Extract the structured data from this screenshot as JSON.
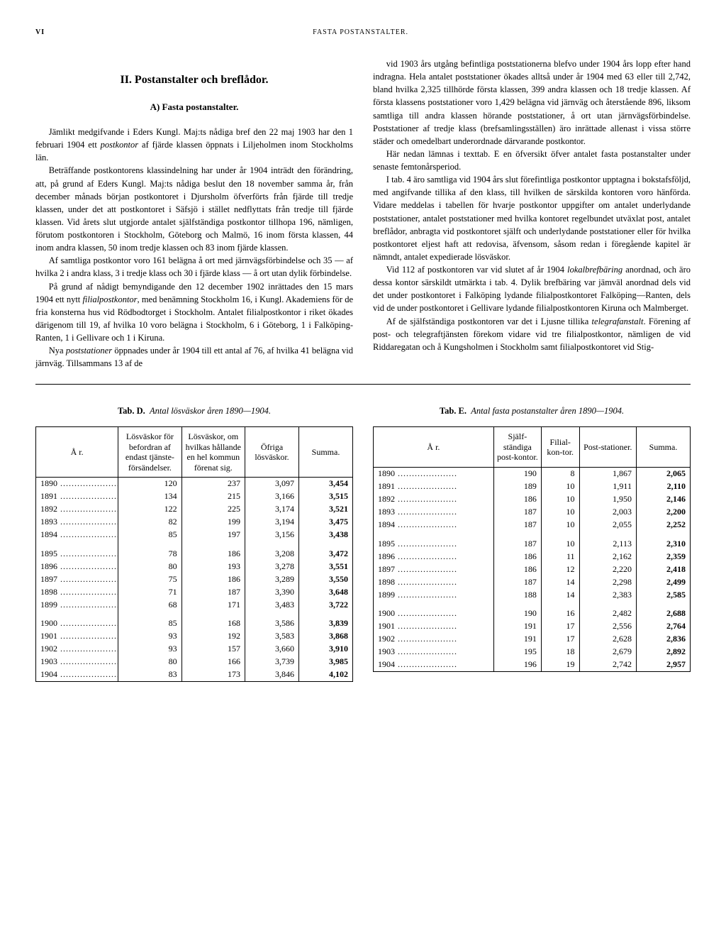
{
  "header": {
    "page_num": "VI",
    "running_title": "FASTA POSTANSTALTER."
  },
  "section": {
    "title": "II.   Postanstalter och breflådor.",
    "subtitle": "A) Fasta postanstalter."
  },
  "left_paras": [
    "Jämlikt medgifvande i Eders Kungl. Maj:ts nådiga bref den 22 maj 1903 har den 1 februari 1904 ett <i>postkontor</i> af fjärde klassen öppnats i Liljeholmen inom Stockholms län.",
    "Beträffande postkontorens klassindelning har under år 1904 inträdt den förändring, att, på grund af Eders Kungl. Maj:ts nådiga beslut den 18 november samma år, från december månads början postkontoret i Djursholm öfverförts från fjärde till tredje klassen, under det att postkontoret i Säfsjö i stället nedflyttats från tredje till fjärde klassen. Vid årets slut utgjorde antalet själfständiga postkontor tillhopa 196, nämligen, förutom postkontoren i Stockholm, Göteborg och Malmö, 16 inom första klassen, 44 inom andra klassen, 50 inom tredje klassen och 83 inom fjärde klassen.",
    "Af samtliga postkontor voro 161 belägna å ort med järnvägsförbindelse och 35 — af hvilka 2 i andra klass, 3 i tredje klass och 30 i fjärde klass — å ort utan dylik förbindelse.",
    "På grund af nådigt bemyndigande den 12 december 1902 inrättades den 15 mars 1904 ett nytt <i>filialpostkontor</i>, med benämning Stockholm 16, i Kungl. Akademiens för de fria konsterna hus vid Rödbodtorget i Stockholm. Antalet filialpostkontor i riket ökades därigenom till 19, af hvilka 10 voro belägna i Stockholm, 6 i Göteborg, 1 i Falköping-Ranten, 1 i Gellivare och 1 i Kiruna.",
    "Nya <i>poststationer</i> öppnades under år 1904 till ett antal af 76, af hvilka 41 belägna vid järnväg. Tillsammans 13 af de"
  ],
  "right_paras": [
    "vid 1903 års utgång befintliga poststationerna blefvo under 1904 års lopp efter hand indragna. Hela antalet poststationer ökades alltså under år 1904 med 63 eller till 2,742, bland hvilka 2,325 tillhörde första klassen, 399 andra klassen och 18 tredje klassen. Af första klassens poststationer voro 1,429 belägna vid järnväg och återstående 896, liksom samtliga till andra klassen hörande poststationer, å ort utan järnvägsförbindelse. Poststationer af tredje klass (brefsamlingsställen) äro inrättade allenast i vissa större städer och omedelbart underordnade därvarande postkontor.",
    "Här nedan lämnas i texttab. E en öfversikt öfver antalet fasta postanstalter under senaste femtonårsperiod.",
    "I tab. 4 äro samtliga vid 1904 års slut förefintliga postkontor upptagna i bokstafsföljd, med angifvande tillika af den klass, till hvilken de särskilda kontoren voro hänförda. Vidare meddelas i tabellen för hvarje postkontor uppgifter om antalet underlydande poststationer, antalet poststationer med hvilka kontoret regelbundet utväxlat post, antalet breflådor, anbragta vid postkontoret själft och underlydande poststationer eller för hvilka postkontoret eljest haft att redovisa, äfvensom, såsom redan i föregående kapitel är nämndt, antalet expedierade lösväskor.",
    "Vid 112 af postkontoren var vid slutet af år 1904 <i>lokalbrefbäring</i> anordnad, och äro dessa kontor särskildt utmärkta i tab. 4. Dylik brefbäring var jämväl anordnad dels vid det under postkontoret i Falköping lydande filialpostkontoret Falköping—Ranten, dels vid de under postkontoret i Gellivare lydande filialpostkontoren Kiruna och Malmberget.",
    "Af de själfständiga postkontoren var det i Ljusne tillika <i>telegrafanstalt</i>. Förening af post- och telegraftjänsten förekom vidare vid tre filialpostkontor, nämligen de vid Riddaregatan och å Kungsholmen i Stockholm samt filialpostkontoret vid Stig-"
  ],
  "tableD": {
    "title_bold": "Tab. D.",
    "title_ital": "Antal lösväskor åren 1890—1904.",
    "headers": [
      "Å r.",
      "Lösväskor för befordran af endast tjänste-försändelser.",
      "Lösväskor, om hvilkas hållande en hel kommun förenat sig.",
      "Öfriga lösväskor.",
      "Summa."
    ],
    "rows": [
      [
        "1890",
        "120",
        "237",
        "3,097",
        "3,454"
      ],
      [
        "1891",
        "134",
        "215",
        "3,166",
        "3,515"
      ],
      [
        "1892",
        "122",
        "225",
        "3,174",
        "3,521"
      ],
      [
        "1893",
        "82",
        "199",
        "3,194",
        "3,475"
      ],
      [
        "1894",
        "85",
        "197",
        "3,156",
        "3,438"
      ],
      [
        "1895",
        "78",
        "186",
        "3,208",
        "3,472"
      ],
      [
        "1896",
        "80",
        "193",
        "3,278",
        "3,551"
      ],
      [
        "1897",
        "75",
        "186",
        "3,289",
        "3,550"
      ],
      [
        "1898",
        "71",
        "187",
        "3,390",
        "3,648"
      ],
      [
        "1899",
        "68",
        "171",
        "3,483",
        "3,722"
      ],
      [
        "1900",
        "85",
        "168",
        "3,586",
        "3,839"
      ],
      [
        "1901",
        "93",
        "192",
        "3,583",
        "3,868"
      ],
      [
        "1902",
        "93",
        "157",
        "3,660",
        "3,910"
      ],
      [
        "1903",
        "80",
        "166",
        "3,739",
        "3,985"
      ],
      [
        "1904",
        "83",
        "173",
        "3,846",
        "4,102"
      ]
    ]
  },
  "tableE": {
    "title_bold": "Tab. E.",
    "title_ital": "Antal fasta postanstalter åren 1890—1904.",
    "headers": [
      "Å r.",
      "Själf-ständiga post-kontor.",
      "Filial-kon-tor.",
      "Post-stationer.",
      "Summa."
    ],
    "rows": [
      [
        "1890",
        "190",
        "8",
        "1,867",
        "2,065"
      ],
      [
        "1891",
        "189",
        "10",
        "1,911",
        "2,110"
      ],
      [
        "1892",
        "186",
        "10",
        "1,950",
        "2,146"
      ],
      [
        "1893",
        "187",
        "10",
        "2,003",
        "2,200"
      ],
      [
        "1894",
        "187",
        "10",
        "2,055",
        "2,252"
      ],
      [
        "1895",
        "187",
        "10",
        "2,113",
        "2,310"
      ],
      [
        "1896",
        "186",
        "11",
        "2,162",
        "2,359"
      ],
      [
        "1897",
        "186",
        "12",
        "2,220",
        "2,418"
      ],
      [
        "1898",
        "187",
        "14",
        "2,298",
        "2,499"
      ],
      [
        "1899",
        "188",
        "14",
        "2,383",
        "2,585"
      ],
      [
        "1900",
        "190",
        "16",
        "2,482",
        "2,688"
      ],
      [
        "1901",
        "191",
        "17",
        "2,556",
        "2,764"
      ],
      [
        "1902",
        "191",
        "17",
        "2,628",
        "2,836"
      ],
      [
        "1903",
        "195",
        "18",
        "2,679",
        "2,892"
      ],
      [
        "1904",
        "196",
        "19",
        "2,742",
        "2,957"
      ]
    ]
  }
}
